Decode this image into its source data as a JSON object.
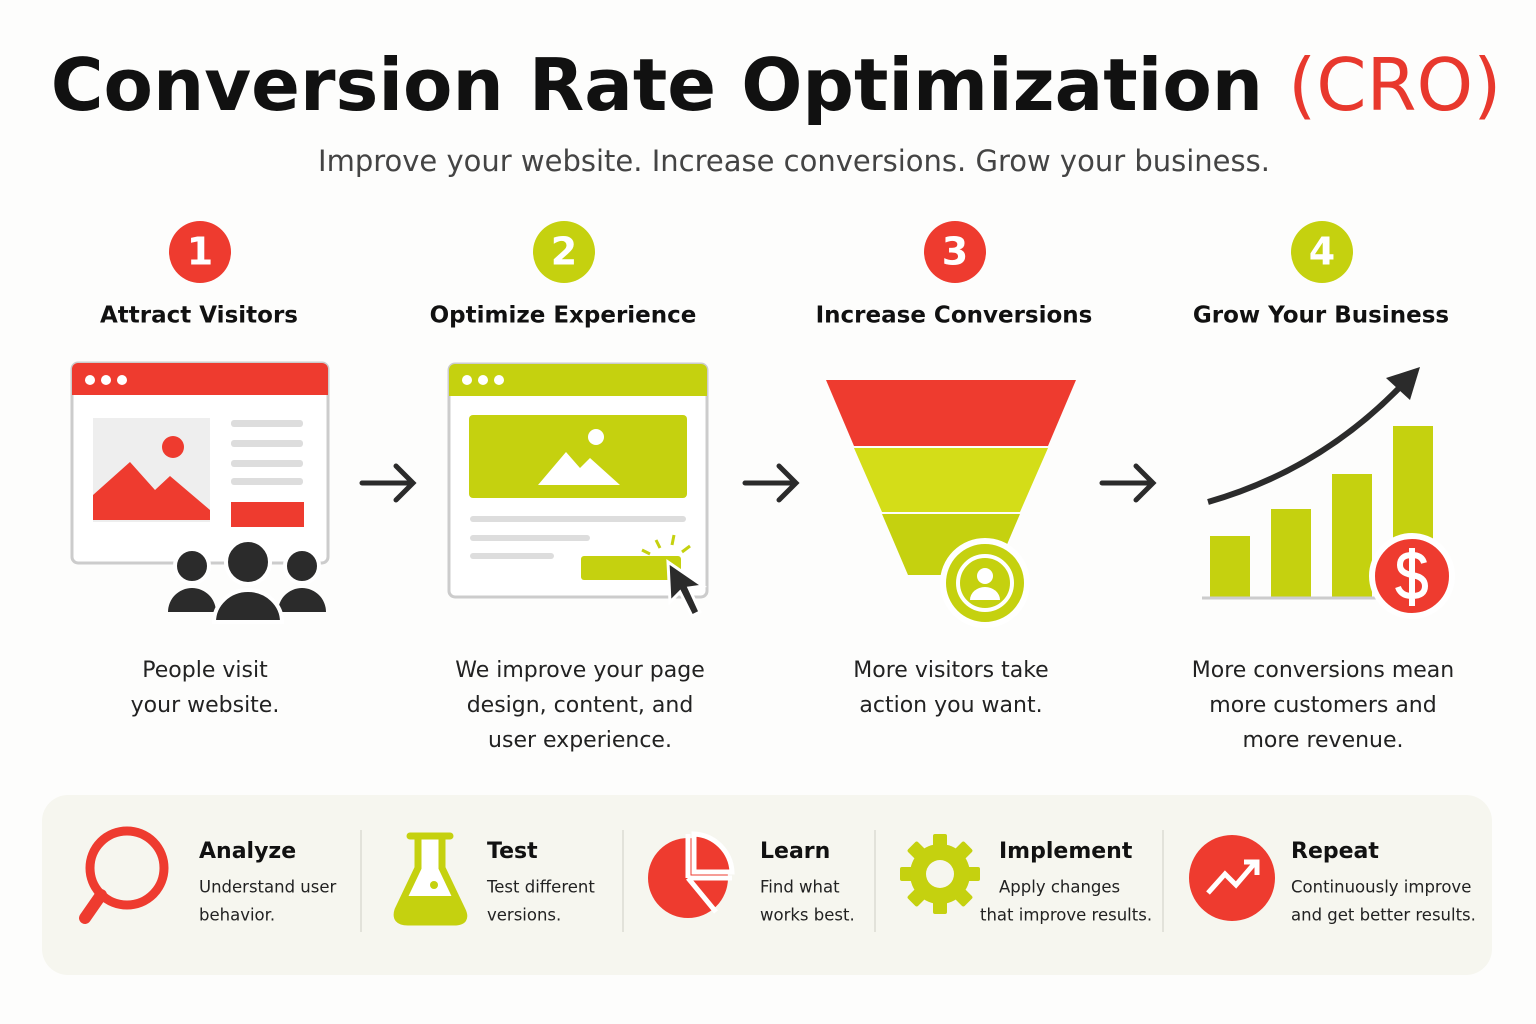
{
  "header": {
    "title_main": "Conversion Rate Optimization",
    "title_accent": "(CRO)",
    "subtitle": "Improve your website. Increase conversions. Grow your business."
  },
  "steps": [
    {
      "number": "1",
      "title": "Attract Visitors",
      "description": [
        "People visit",
        "your website."
      ]
    },
    {
      "number": "2",
      "title": "Optimize Experience",
      "description": [
        "We improve your page",
        "design, content, and",
        "user experience."
      ]
    },
    {
      "number": "3",
      "title": "Increase Conversions",
      "description": [
        "More visitors take",
        "action you want."
      ]
    },
    {
      "number": "4",
      "title": "Grow Your Business",
      "description": [
        "More conversions mean",
        "more customers and",
        "more revenue."
      ]
    }
  ],
  "cycle": [
    {
      "title": "Analyze",
      "description": [
        "Understand user",
        "behavior."
      ]
    },
    {
      "title": "Test",
      "description": [
        "Test different",
        "versions."
      ]
    },
    {
      "title": "Learn",
      "description": [
        "Find what",
        "works best."
      ]
    },
    {
      "title": "Implement",
      "description": [
        "Apply changes",
        "that improve results."
      ]
    },
    {
      "title": "Repeat",
      "description": [
        "Continuously improve",
        "and get better results."
      ]
    }
  ]
}
